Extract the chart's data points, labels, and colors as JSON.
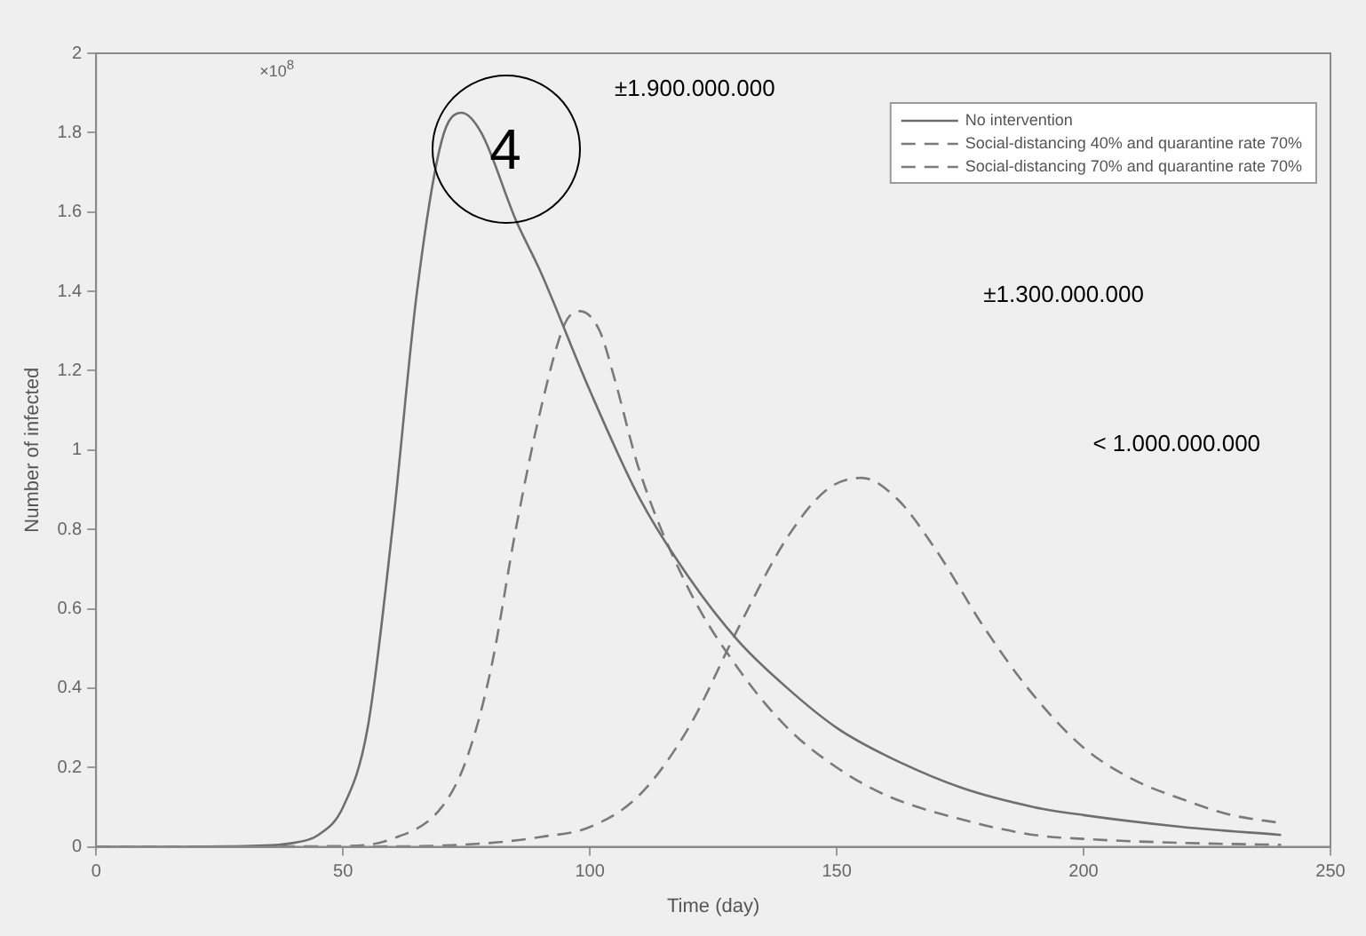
{
  "chart_data": {
    "type": "line",
    "xlabel": "Time (day)",
    "ylabel": "Number of infected",
    "xlim": [
      0,
      250
    ],
    "xticks": [
      0,
      50,
      100,
      150,
      200,
      250
    ],
    "ylim": [
      0,
      2
    ],
    "yticks": [
      0,
      0.2,
      0.4,
      0.6,
      0.8,
      1,
      1.2,
      1.4,
      1.6,
      1.8,
      2
    ],
    "legend": "top right",
    "grid": false,
    "marker": "none",
    "annotations": [
      "×10$^{8}$",
      "±1.900.000.000",
      "±1.300.000.000",
      "< 1.000.000.000",
      "4"
    ],
    "series": [
      {
        "name": "No intervention",
        "color": "#6e6e6e",
        "line_style": "solid",
        "x": [
          0,
          30,
          40,
          45,
          50,
          55,
          60,
          65,
          70,
          74,
          78,
          85,
          90,
          100,
          110,
          120,
          130,
          140,
          150,
          160,
          175,
          190,
          200,
          220,
          240
        ],
        "values": [
          0,
          0.002,
          0.01,
          0.03,
          0.1,
          0.3,
          0.8,
          1.4,
          1.78,
          1.85,
          1.8,
          1.58,
          1.45,
          1.15,
          0.88,
          0.68,
          0.52,
          0.4,
          0.3,
          0.23,
          0.15,
          0.1,
          0.08,
          0.05,
          0.03
        ]
      },
      {
        "name": "Social-distancing 40% and quarantine rate 70%",
        "color": "#7a7a7a",
        "line_style": "dashed",
        "x": [
          0,
          50,
          60,
          70,
          75,
          80,
          85,
          90,
          95,
          98,
          102,
          105,
          110,
          120,
          130,
          140,
          150,
          160,
          175,
          190,
          200,
          220,
          240
        ],
        "values": [
          0,
          0.002,
          0.02,
          0.1,
          0.22,
          0.45,
          0.8,
          1.1,
          1.32,
          1.35,
          1.3,
          1.18,
          0.95,
          0.65,
          0.45,
          0.3,
          0.2,
          0.13,
          0.07,
          0.03,
          0.02,
          0.01,
          0.005
        ]
      },
      {
        "name": "Social-distancing 70% and quarantine rate 70%",
        "color": "#7a7a7a",
        "line_style": "dashed",
        "x": [
          0,
          60,
          80,
          90,
          100,
          110,
          120,
          130,
          140,
          148,
          155,
          162,
          170,
          180,
          190,
          200,
          210,
          220,
          230,
          240
        ],
        "values": [
          0,
          0.001,
          0.01,
          0.025,
          0.05,
          0.13,
          0.3,
          0.55,
          0.78,
          0.9,
          0.93,
          0.88,
          0.75,
          0.55,
          0.38,
          0.25,
          0.17,
          0.12,
          0.08,
          0.06
        ]
      }
    ]
  }
}
